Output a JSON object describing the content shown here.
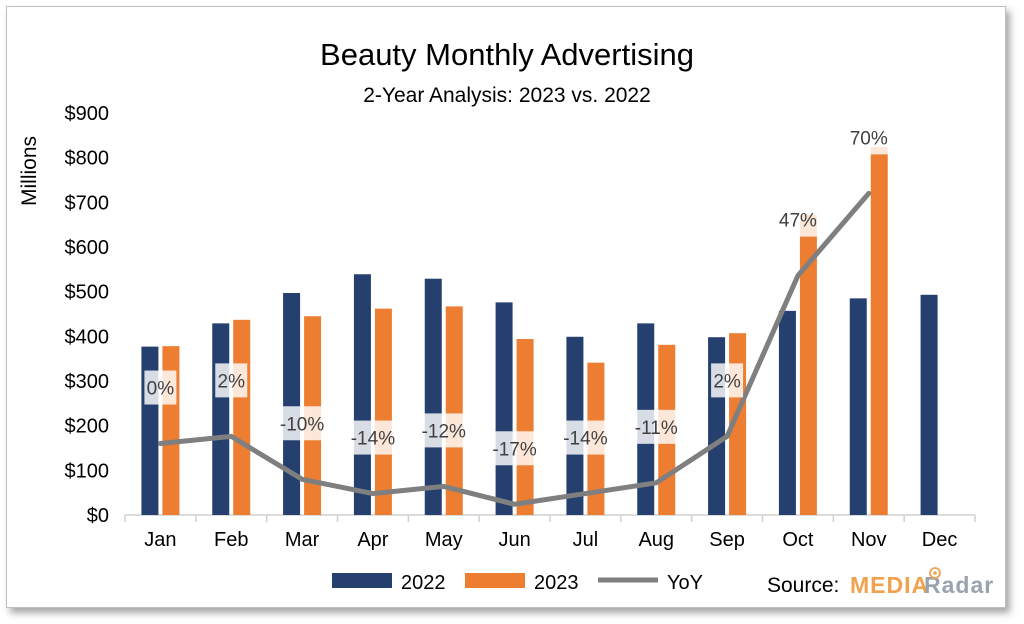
{
  "chart_data": {
    "type": "bar",
    "title": "Beauty Monthly Advertising",
    "subtitle": "2-Year Analysis: 2023 vs. 2022",
    "ylabel": "Millions",
    "ylim": [
      0,
      900
    ],
    "yticks": [
      "$0",
      "$100",
      "$200",
      "$300",
      "$400",
      "$500",
      "$600",
      "$700",
      "$800",
      "$900"
    ],
    "yticks_values": [
      0,
      100,
      200,
      300,
      400,
      500,
      600,
      700,
      800,
      900
    ],
    "categories": [
      "Jan",
      "Feb",
      "Mar",
      "Apr",
      "May",
      "Jun",
      "Jul",
      "Aug",
      "Sep",
      "Oct",
      "Nov",
      "Dec"
    ],
    "series": [
      {
        "name": "2022",
        "color": "#253f6e",
        "values": [
          377,
          429,
          497,
          539,
          529,
          476,
          399,
          429,
          398,
          457,
          485,
          493
        ]
      },
      {
        "name": "2023",
        "color": "#ed7d31",
        "values": [
          378,
          437,
          445,
          462,
          467,
          394,
          341,
          381,
          407,
          672,
          824,
          null
        ]
      }
    ],
    "yoy": {
      "name": "YoY",
      "color": "#7f7f7f",
      "values": [
        0,
        2,
        -10,
        -14,
        -12,
        -17,
        -14,
        -11,
        2,
        47,
        70,
        null
      ],
      "labels": [
        "0%",
        "2%",
        "-10%",
        "-14%",
        "-12%",
        "-17%",
        "-14%",
        "-11%",
        "2%",
        "47%",
        "70%",
        ""
      ]
    },
    "gridlines": false,
    "legend_position": "bottom"
  },
  "source": {
    "label": "Source:",
    "brand_part1": "MEDIA",
    "brand_part2": "Radar"
  }
}
